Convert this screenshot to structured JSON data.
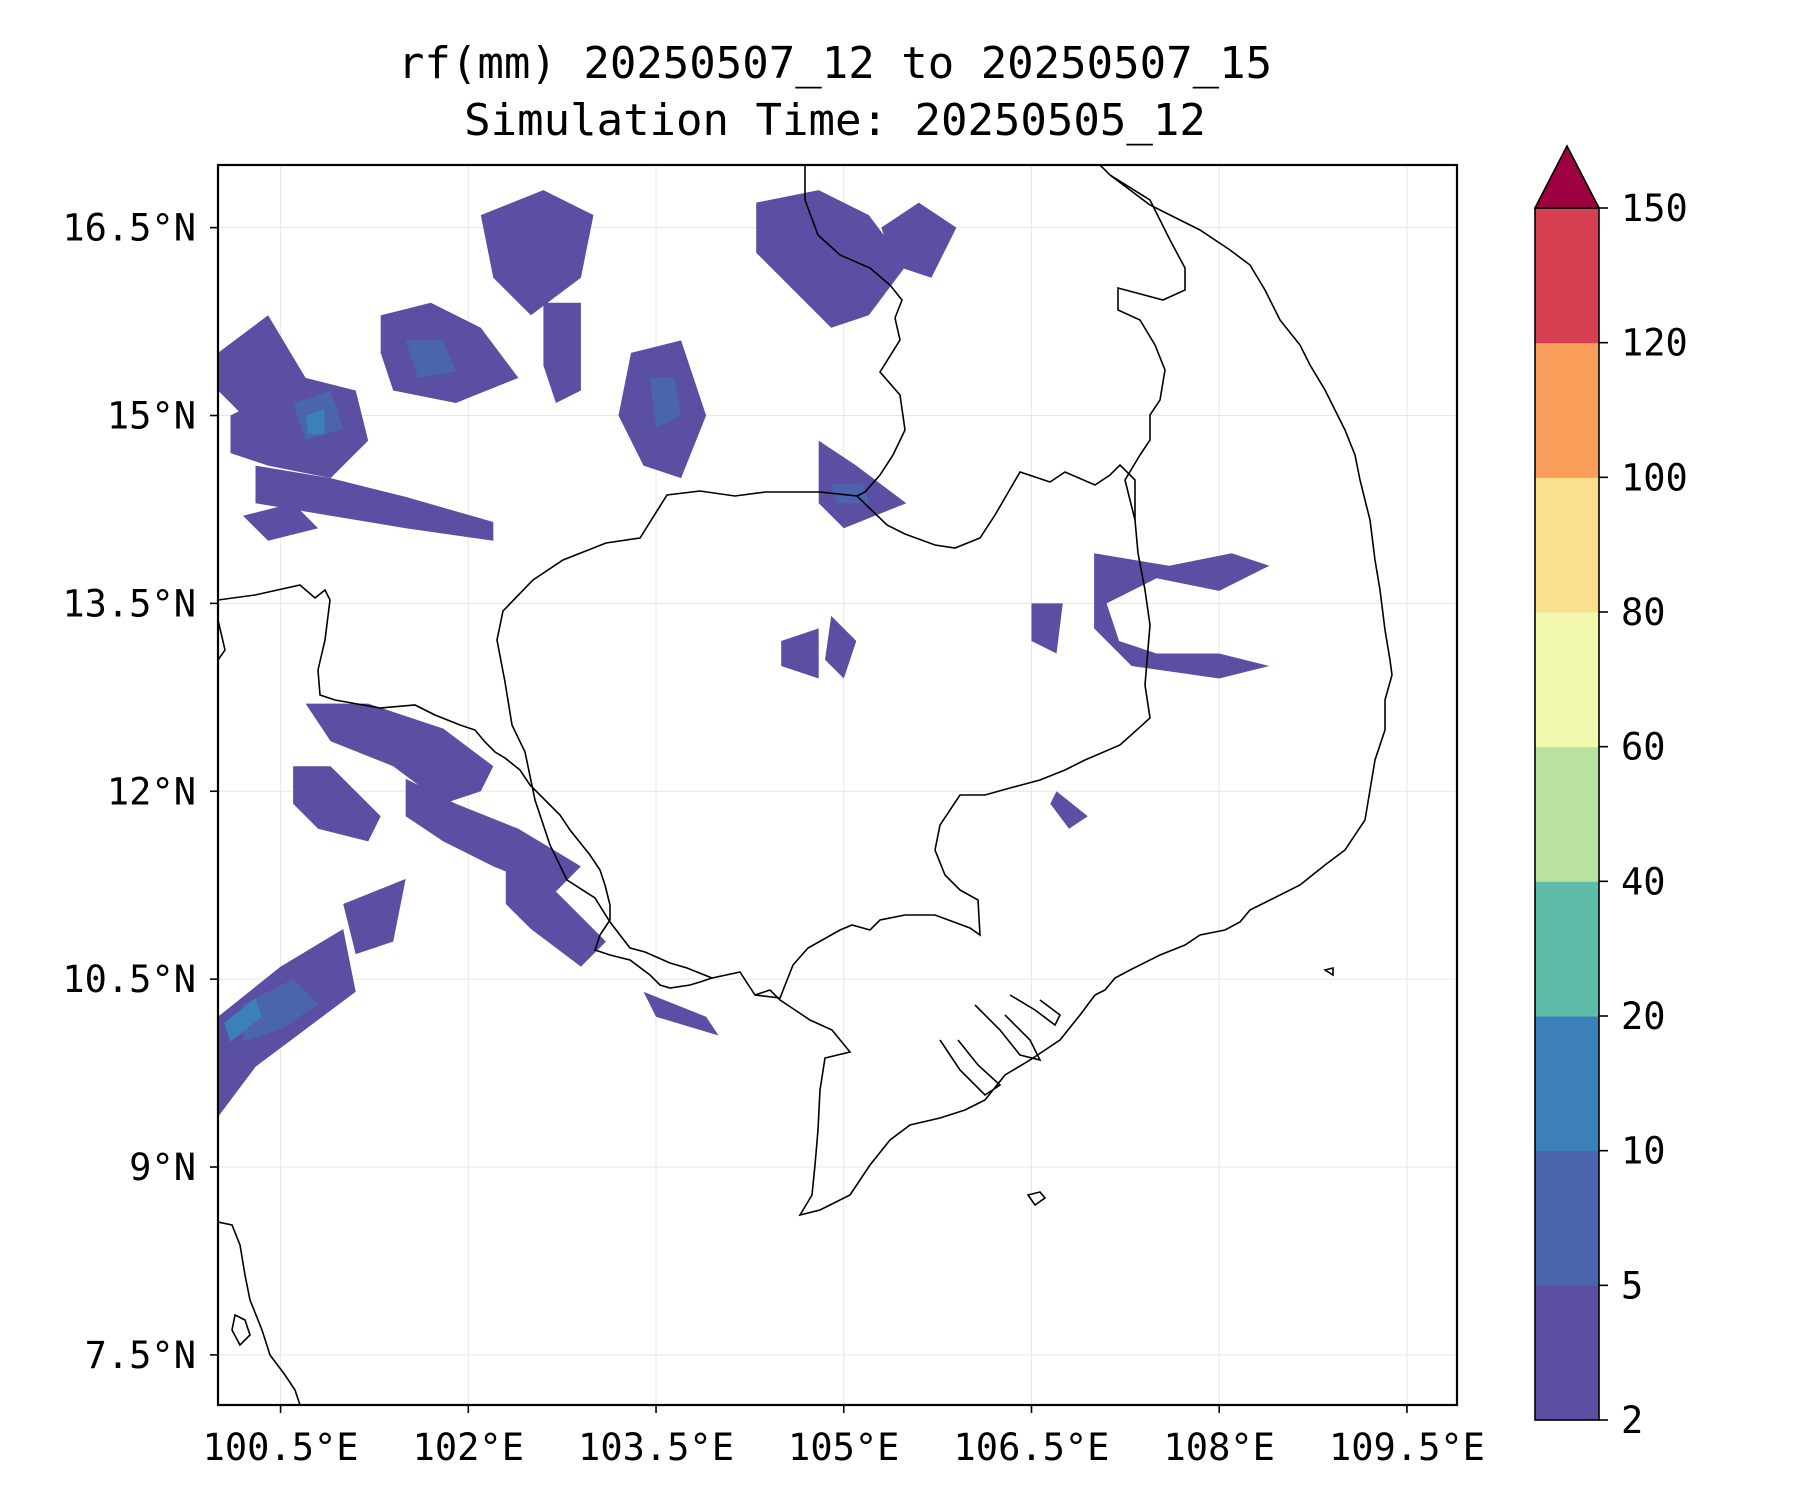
{
  "title": {
    "line1": "rf(mm) 20250507_12 to 20250507_15",
    "line2": "Simulation Time: 20250505_12"
  },
  "axes": {
    "lon_range": [
      100.0,
      109.9
    ],
    "lat_range": [
      7.1,
      17.0
    ],
    "lon_ticks": [
      {
        "value": 100.5,
        "label": "100.5°E"
      },
      {
        "value": 102.0,
        "label": "102°E"
      },
      {
        "value": 103.5,
        "label": "103.5°E"
      },
      {
        "value": 105.0,
        "label": "105°E"
      },
      {
        "value": 106.5,
        "label": "106.5°E"
      },
      {
        "value": 108.0,
        "label": "108°E"
      },
      {
        "value": 109.5,
        "label": "109.5°E"
      }
    ],
    "lat_ticks": [
      {
        "value": 16.5,
        "label": "16.5°N"
      },
      {
        "value": 15.0,
        "label": "15°N"
      },
      {
        "value": 13.5,
        "label": "13.5°N"
      },
      {
        "value": 12.0,
        "label": "12°N"
      },
      {
        "value": 10.5,
        "label": "10.5°N"
      },
      {
        "value": 9.0,
        "label": "9°N"
      },
      {
        "value": 7.5,
        "label": "7.5°N"
      }
    ],
    "grid": true
  },
  "colorbar": {
    "levels": [
      2,
      5,
      10,
      20,
      40,
      60,
      80,
      100,
      120,
      150
    ],
    "labels": [
      "2",
      "5",
      "10",
      "20",
      "40",
      "60",
      "80",
      "100",
      "120",
      "150"
    ],
    "colors": [
      "#5a4fa2",
      "#4a65ad",
      "#3b80b9",
      "#5ebca8",
      "#b9e1a0",
      "#f2f9af",
      "#fadf8c",
      "#f99d5a",
      "#d63f4f"
    ],
    "extend_color": "#9e0142",
    "extend": "max"
  },
  "chart_data": {
    "type": "map-contourf",
    "variable": "rf(mm)",
    "rain_areas": [
      {
        "class": 1,
        "points": [
          [
            100.0,
            15.5
          ],
          [
            100.4,
            15.8
          ],
          [
            100.7,
            15.3
          ],
          [
            100.6,
            14.9
          ],
          [
            100.2,
            15.0
          ],
          [
            100.0,
            15.2
          ]
        ]
      },
      {
        "class": 1,
        "points": [
          [
            100.1,
            15.0
          ],
          [
            100.7,
            15.3
          ],
          [
            101.1,
            15.2
          ],
          [
            101.2,
            14.8
          ],
          [
            100.9,
            14.5
          ],
          [
            100.4,
            14.6
          ],
          [
            100.1,
            14.7
          ]
        ]
      },
      {
        "class": 2,
        "points": [
          [
            100.6,
            15.1
          ],
          [
            100.9,
            15.2
          ],
          [
            101.0,
            14.9
          ],
          [
            100.7,
            14.8
          ]
        ]
      },
      {
        "class": 3,
        "points": [
          [
            100.7,
            15.0
          ],
          [
            100.85,
            15.05
          ],
          [
            100.85,
            14.85
          ],
          [
            100.72,
            14.85
          ]
        ]
      },
      {
        "class": 1,
        "points": [
          [
            100.3,
            14.6
          ],
          [
            100.9,
            14.5
          ],
          [
            101.5,
            14.35
          ],
          [
            102.2,
            14.15
          ],
          [
            102.2,
            14.0
          ],
          [
            101.5,
            14.1
          ],
          [
            100.9,
            14.2
          ],
          [
            100.3,
            14.3
          ]
        ]
      },
      {
        "class": 1,
        "points": [
          [
            100.2,
            14.2
          ],
          [
            100.6,
            14.3
          ],
          [
            100.8,
            14.1
          ],
          [
            100.4,
            14.0
          ]
        ]
      },
      {
        "class": 1,
        "points": [
          [
            101.3,
            15.8
          ],
          [
            101.7,
            15.9
          ],
          [
            102.1,
            15.7
          ],
          [
            102.4,
            15.3
          ],
          [
            101.9,
            15.1
          ],
          [
            101.4,
            15.2
          ],
          [
            101.3,
            15.5
          ]
        ]
      },
      {
        "class": 2,
        "points": [
          [
            101.5,
            15.6
          ],
          [
            101.8,
            15.6
          ],
          [
            101.9,
            15.35
          ],
          [
            101.6,
            15.3
          ]
        ]
      },
      {
        "class": 1,
        "points": [
          [
            102.1,
            16.6
          ],
          [
            102.6,
            16.8
          ],
          [
            103.0,
            16.6
          ],
          [
            102.9,
            16.1
          ],
          [
            102.5,
            15.8
          ],
          [
            102.2,
            16.1
          ]
        ]
      },
      {
        "class": 1,
        "points": [
          [
            102.6,
            15.9
          ],
          [
            102.9,
            15.9
          ],
          [
            102.9,
            15.2
          ],
          [
            102.7,
            15.1
          ],
          [
            102.6,
            15.4
          ]
        ]
      },
      {
        "class": 1,
        "points": [
          [
            103.3,
            15.5
          ],
          [
            103.7,
            15.6
          ],
          [
            103.9,
            15.0
          ],
          [
            103.7,
            14.5
          ],
          [
            103.4,
            14.6
          ],
          [
            103.2,
            15.0
          ]
        ]
      },
      {
        "class": 2,
        "points": [
          [
            103.45,
            15.3
          ],
          [
            103.65,
            15.3
          ],
          [
            103.7,
            15.0
          ],
          [
            103.5,
            14.9
          ]
        ]
      },
      {
        "class": 1,
        "points": [
          [
            104.3,
            16.7
          ],
          [
            104.8,
            16.8
          ],
          [
            105.2,
            16.6
          ],
          [
            105.5,
            16.2
          ],
          [
            105.2,
            15.8
          ],
          [
            104.9,
            15.7
          ],
          [
            104.6,
            16.0
          ],
          [
            104.3,
            16.3
          ]
        ]
      },
      {
        "class": 1,
        "points": [
          [
            105.3,
            16.5
          ],
          [
            105.6,
            16.7
          ],
          [
            105.9,
            16.5
          ],
          [
            105.7,
            16.1
          ],
          [
            105.4,
            16.2
          ]
        ]
      },
      {
        "class": 1,
        "points": [
          [
            104.8,
            14.8
          ],
          [
            105.1,
            14.6
          ],
          [
            105.5,
            14.3
          ],
          [
            105.0,
            14.1
          ],
          [
            104.8,
            14.3
          ]
        ]
      },
      {
        "class": 2,
        "points": [
          [
            104.9,
            14.45
          ],
          [
            105.15,
            14.45
          ],
          [
            105.2,
            14.3
          ],
          [
            104.95,
            14.3
          ]
        ]
      },
      {
        "class": 1,
        "points": [
          [
            104.5,
            13.2
          ],
          [
            104.8,
            13.3
          ],
          [
            104.8,
            12.9
          ],
          [
            104.5,
            13.0
          ]
        ]
      },
      {
        "class": 1,
        "points": [
          [
            104.9,
            13.4
          ],
          [
            105.1,
            13.2
          ],
          [
            105.0,
            12.9
          ],
          [
            104.85,
            13.05
          ]
        ]
      },
      {
        "class": 1,
        "points": [
          [
            107.0,
            13.9
          ],
          [
            107.6,
            13.8
          ],
          [
            108.1,
            13.9
          ],
          [
            108.4,
            13.8
          ],
          [
            108.0,
            13.6
          ],
          [
            107.5,
            13.7
          ],
          [
            107.1,
            13.5
          ],
          [
            107.2,
            13.2
          ],
          [
            107.5,
            13.1
          ],
          [
            108.0,
            13.1
          ],
          [
            108.4,
            13.0
          ],
          [
            108.0,
            12.9
          ],
          [
            107.3,
            13.0
          ],
          [
            107.0,
            13.3
          ]
        ]
      },
      {
        "class": 1,
        "points": [
          [
            106.5,
            13.5
          ],
          [
            106.75,
            13.5
          ],
          [
            106.7,
            13.1
          ],
          [
            106.5,
            13.2
          ]
        ]
      },
      {
        "class": 1,
        "points": [
          [
            100.7,
            12.7
          ],
          [
            101.2,
            12.7
          ],
          [
            101.8,
            12.5
          ],
          [
            102.2,
            12.2
          ],
          [
            102.1,
            12.0
          ],
          [
            101.8,
            11.9
          ],
          [
            101.4,
            12.2
          ],
          [
            100.9,
            12.4
          ]
        ]
      },
      {
        "class": 1,
        "points": [
          [
            100.6,
            12.2
          ],
          [
            100.9,
            12.2
          ],
          [
            101.3,
            11.8
          ],
          [
            101.2,
            11.6
          ],
          [
            100.8,
            11.7
          ],
          [
            100.6,
            11.9
          ]
        ]
      },
      {
        "class": 1,
        "points": [
          [
            101.5,
            12.1
          ],
          [
            101.9,
            11.9
          ],
          [
            102.4,
            11.7
          ],
          [
            102.9,
            11.4
          ],
          [
            102.7,
            11.2
          ],
          [
            102.2,
            11.4
          ],
          [
            101.8,
            11.6
          ],
          [
            101.5,
            11.8
          ]
        ]
      },
      {
        "class": 1,
        "points": [
          [
            102.3,
            11.4
          ],
          [
            102.7,
            11.2
          ],
          [
            103.1,
            10.8
          ],
          [
            102.9,
            10.6
          ],
          [
            102.5,
            10.9
          ],
          [
            102.3,
            11.1
          ]
        ]
      },
      {
        "class": 1,
        "points": [
          [
            101.0,
            11.1
          ],
          [
            101.5,
            11.3
          ],
          [
            101.4,
            10.8
          ],
          [
            101.1,
            10.7
          ]
        ]
      },
      {
        "class": 1,
        "points": [
          [
            100.0,
            10.2
          ],
          [
            100.5,
            10.6
          ],
          [
            101.0,
            10.9
          ],
          [
            101.1,
            10.4
          ],
          [
            100.7,
            10.1
          ],
          [
            100.3,
            9.8
          ],
          [
            100.0,
            9.4
          ]
        ]
      },
      {
        "class": 2,
        "points": [
          [
            100.2,
            10.3
          ],
          [
            100.6,
            10.5
          ],
          [
            100.8,
            10.3
          ],
          [
            100.5,
            10.1
          ],
          [
            100.2,
            10.0
          ]
        ]
      },
      {
        "class": 3,
        "points": [
          [
            100.05,
            10.15
          ],
          [
            100.3,
            10.35
          ],
          [
            100.35,
            10.2
          ],
          [
            100.1,
            10.0
          ]
        ]
      },
      {
        "class": 1,
        "points": [
          [
            103.4,
            10.4
          ],
          [
            103.9,
            10.2
          ],
          [
            104.0,
            10.05
          ],
          [
            103.5,
            10.2
          ]
        ]
      },
      {
        "class": 1,
        "points": [
          [
            106.7,
            12.0
          ],
          [
            106.95,
            11.8
          ],
          [
            106.8,
            11.7
          ],
          [
            106.65,
            11.9
          ]
        ]
      }
    ]
  },
  "map_features": {
    "coastline_and_borders": true
  }
}
